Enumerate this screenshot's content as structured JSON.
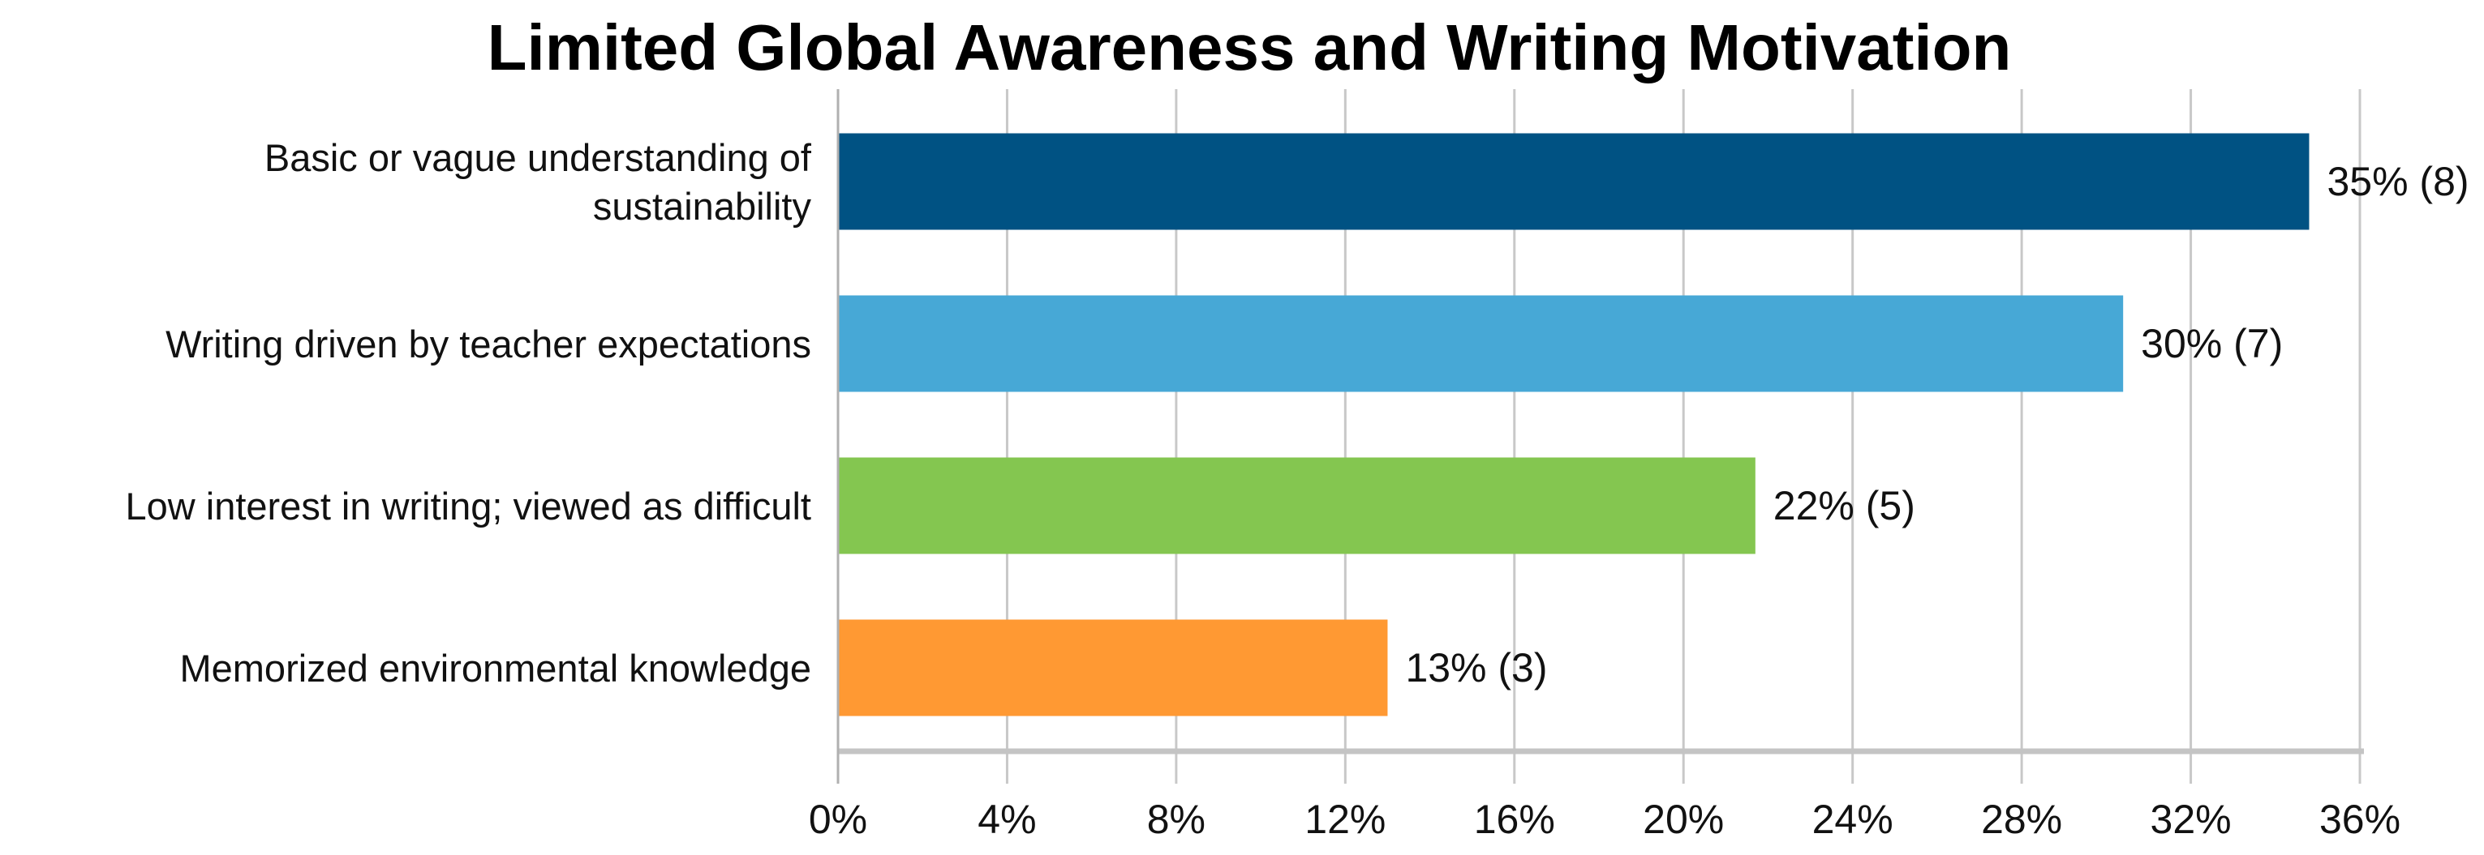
{
  "chart_data": {
    "type": "bar",
    "orientation": "horizontal",
    "title": "Limited Global Awareness and Writing Motivation",
    "xlabel": "",
    "ylabel": "",
    "categories": [
      [
        "Basic or vague understanding of",
        "sustainability"
      ],
      [
        "Writing driven by teacher expectations"
      ],
      [
        "Low interest in writing; viewed as difficult"
      ],
      [
        "Memorized environmental knowledge"
      ]
    ],
    "values": [
      34.8,
      30.4,
      21.7,
      13.0
    ],
    "data_labels": [
      "35% (8)",
      "30% (7)",
      "22% (5)",
      "13% (3)"
    ],
    "colors": [
      "#005283",
      "#47A8D6",
      "#84C650",
      "#FF9933"
    ],
    "xlim": [
      0,
      36
    ],
    "xticks": [
      0,
      4,
      8,
      12,
      16,
      20,
      24,
      28,
      32,
      36
    ],
    "xtick_labels": [
      "0%",
      "4%",
      "8%",
      "12%",
      "16%",
      "20%",
      "24%",
      "28%",
      "32%",
      "36%"
    ],
    "grid": "vertical",
    "grid_color": "#c8c8c8",
    "legend": "none"
  }
}
